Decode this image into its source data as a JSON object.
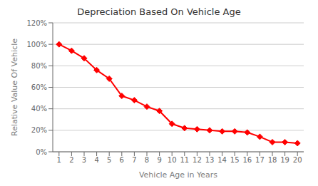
{
  "chart_data": {
    "type": "line",
    "title": "Depreciation Based On Vehicle Age",
    "xlabel": "Vehicle Age in Years",
    "ylabel": "Relative Value Of Vehicle",
    "x": [
      1,
      2,
      3,
      4,
      5,
      6,
      7,
      8,
      9,
      10,
      11,
      12,
      13,
      14,
      15,
      16,
      17,
      18,
      19,
      20
    ],
    "values": [
      1.0,
      0.94,
      0.87,
      0.76,
      0.68,
      0.52,
      0.48,
      0.42,
      0.38,
      0.26,
      0.22,
      0.21,
      0.2,
      0.19,
      0.19,
      0.18,
      0.14,
      0.09,
      0.09,
      0.08
    ],
    "color": "#ff0000",
    "marker": "diamond",
    "xlim": [
      0.5,
      20.5
    ],
    "xticks": [
      1,
      2,
      3,
      4,
      5,
      6,
      7,
      8,
      9,
      10,
      11,
      12,
      13,
      14,
      15,
      16,
      17,
      18,
      19,
      20
    ],
    "ylim": [
      0,
      1.2
    ],
    "yticks": [
      {
        "value": 0,
        "label": "0%"
      },
      {
        "value": 0.2,
        "label": "20%"
      },
      {
        "value": 0.4,
        "label": "40%"
      },
      {
        "value": 0.6,
        "label": "60%"
      },
      {
        "value": 0.8,
        "label": "80%"
      },
      {
        "value": 1.0,
        "label": "100%"
      },
      {
        "value": 1.2,
        "label": "120%"
      }
    ],
    "grid": true
  }
}
